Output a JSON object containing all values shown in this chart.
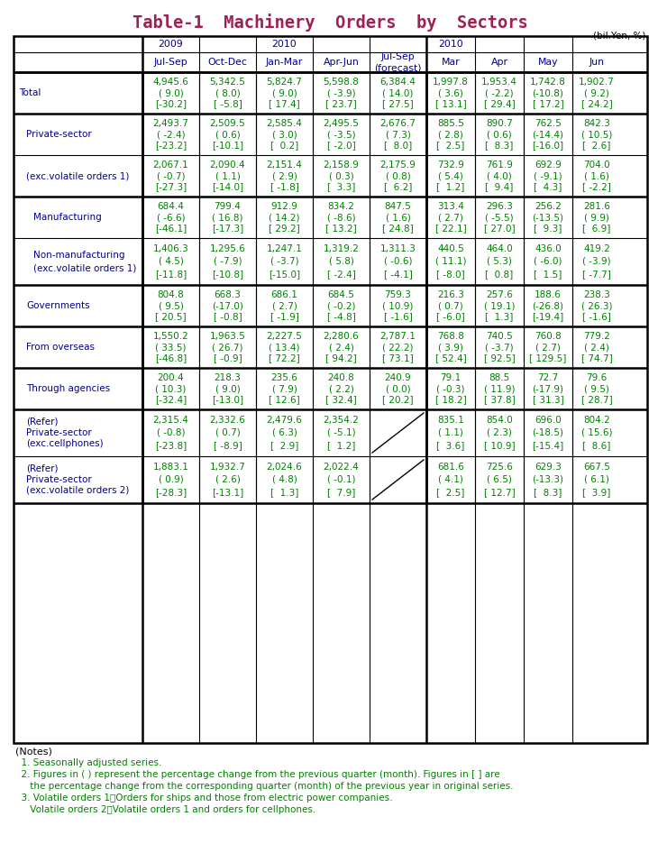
{
  "title": "Table-1  Machinery  Orders  by  Sectors",
  "title_color": "#9B2257",
  "unit_label": "(bil.Yen, %)",
  "col_header_color": "#00008B",
  "data_color": "#008000",
  "label_color": "#00008B",
  "rows": [
    {
      "label": [
        "Total"
      ],
      "indent": 0,
      "values": [
        [
          "4,945.6",
          "( 9.0)",
          "[-30.2]"
        ],
        [
          "5,342.5",
          "( 8.0)",
          "[ -5.8]"
        ],
        [
          "5,824.7",
          "( 9.0)",
          "[ 17.4]"
        ],
        [
          "5,598.8",
          "( -3.9)",
          "[ 23.7]"
        ],
        [
          "6,384.4",
          "( 14.0)",
          "[ 27.5]"
        ],
        [
          "1,997.8",
          "( 3.6)",
          "[ 13.1]"
        ],
        [
          "1,953.4",
          "( -2.2)",
          "[ 29.4]"
        ],
        [
          "1,742.8",
          "(-10.8)",
          "[ 17.2]"
        ],
        [
          "1,902.7",
          "( 9.2)",
          "[ 24.2]"
        ]
      ],
      "thick_top": true,
      "n_label_lines": 1
    },
    {
      "label": [
        "Private-sector"
      ],
      "indent": 1,
      "values": [
        [
          "2,493.7",
          "( -2.4)",
          "[-23.2]"
        ],
        [
          "2,509.5",
          "( 0.6)",
          "[-10.1]"
        ],
        [
          "2,585.4",
          "( 3.0)",
          "[  0.2]"
        ],
        [
          "2,495.5",
          "( -3.5)",
          "[ -2.0]"
        ],
        [
          "2,676.7",
          "( 7.3)",
          "[  8.0]"
        ],
        [
          "885.5",
          "( 2.8)",
          "[  2.5]"
        ],
        [
          "890.7",
          "( 0.6)",
          "[  8.3]"
        ],
        [
          "762.5",
          "(-14.4)",
          "[-16.0]"
        ],
        [
          "842.3",
          "( 10.5)",
          "[  2.6]"
        ]
      ],
      "thick_top": true,
      "n_label_lines": 1
    },
    {
      "label": [
        "(exc.volatile orders 1)"
      ],
      "indent": 1,
      "values": [
        [
          "2,067.1",
          "( -0.7)",
          "[-27.3]"
        ],
        [
          "2,090.4",
          "( 1.1)",
          "[-14.0]"
        ],
        [
          "2,151.4",
          "( 2.9)",
          "[ -1.8]"
        ],
        [
          "2,158.9",
          "( 0.3)",
          "[  3.3]"
        ],
        [
          "2,175.9",
          "( 0.8)",
          "[  6.2]"
        ],
        [
          "732.9",
          "( 5.4)",
          "[  1.2]"
        ],
        [
          "761.9",
          "( 4.0)",
          "[  9.4]"
        ],
        [
          "692.9",
          "( -9.1)",
          "[  4.3]"
        ],
        [
          "704.0",
          "( 1.6)",
          "[ -2.2]"
        ]
      ],
      "thick_top": false,
      "n_label_lines": 1
    },
    {
      "label": [
        "Manufacturing"
      ],
      "indent": 2,
      "values": [
        [
          "684.4",
          "( -6.6)",
          "[-46.1]"
        ],
        [
          "799.4",
          "( 16.8)",
          "[-17.3]"
        ],
        [
          "912.9",
          "( 14.2)",
          "[ 29.2]"
        ],
        [
          "834.2",
          "( -8.6)",
          "[ 13.2]"
        ],
        [
          "847.5",
          "( 1.6)",
          "[ 24.8]"
        ],
        [
          "313.4",
          "( 2.7)",
          "[ 22.1]"
        ],
        [
          "296.3",
          "( -5.5)",
          "[ 27.0]"
        ],
        [
          "256.2",
          "(-13.5)",
          "[  9.3]"
        ],
        [
          "281.6",
          "( 9.9)",
          "[  6.9]"
        ]
      ],
      "thick_top": true,
      "n_label_lines": 1
    },
    {
      "label": [
        "Non-manufacturing",
        "(exc.volatile orders 1)"
      ],
      "indent": 2,
      "values": [
        [
          "1,406.3",
          "( 4.5)",
          "[-11.8]"
        ],
        [
          "1,295.6",
          "( -7.9)",
          "[-10.8]"
        ],
        [
          "1,247.1",
          "( -3.7)",
          "[-15.0]"
        ],
        [
          "1,319.2",
          "( 5.8)",
          "[ -2.4]"
        ],
        [
          "1,311.3",
          "( -0.6)",
          "[ -4.1]"
        ],
        [
          "440.5",
          "( 11.1)",
          "[ -8.0]"
        ],
        [
          "464.0",
          "( 5.3)",
          "[  0.8]"
        ],
        [
          "436.0",
          "( -6.0)",
          "[  1.5]"
        ],
        [
          "419.2",
          "( -3.9)",
          "[ -7.7]"
        ]
      ],
      "thick_top": false,
      "n_label_lines": 2
    },
    {
      "label": [
        "Governments"
      ],
      "indent": 1,
      "values": [
        [
          "804.8",
          "( 9.5)",
          "[ 20.5]"
        ],
        [
          "668.3",
          "(-17.0)",
          "[ -0.8]"
        ],
        [
          "686.1",
          "( 2.7)",
          "[ -1.9]"
        ],
        [
          "684.5",
          "( -0.2)",
          "[ -4.8]"
        ],
        [
          "759.3",
          "( 10.9)",
          "[ -1.6]"
        ],
        [
          "216.3",
          "( 0.7)",
          "[ -6.0]"
        ],
        [
          "257.6",
          "( 19.1)",
          "[  1.3]"
        ],
        [
          "188.6",
          "(-26.8)",
          "[-19.4]"
        ],
        [
          "238.3",
          "( 26.3)",
          "[ -1.6]"
        ]
      ],
      "thick_top": true,
      "n_label_lines": 1
    },
    {
      "label": [
        "From overseas"
      ],
      "indent": 1,
      "values": [
        [
          "1,550.2",
          "( 33.5)",
          "[-46.8]"
        ],
        [
          "1,963.5",
          "( 26.7)",
          "[ -0.9]"
        ],
        [
          "2,227.5",
          "( 13.4)",
          "[ 72.2]"
        ],
        [
          "2,280.6",
          "( 2.4)",
          "[ 94.2]"
        ],
        [
          "2,787.1",
          "( 22.2)",
          "[ 73.1]"
        ],
        [
          "768.8",
          "( 3.9)",
          "[ 52.4]"
        ],
        [
          "740.5",
          "( -3.7)",
          "[ 92.5]"
        ],
        [
          "760.8",
          "( 2.7)",
          "[ 129.5]"
        ],
        [
          "779.2",
          "( 2.4)",
          "[ 74.7]"
        ]
      ],
      "thick_top": true,
      "n_label_lines": 1
    },
    {
      "label": [
        "Through agencies"
      ],
      "indent": 1,
      "values": [
        [
          "200.4",
          "( 10.3)",
          "[-32.4]"
        ],
        [
          "218.3",
          "( 9.0)",
          "[-13.0]"
        ],
        [
          "235.6",
          "( 7.9)",
          "[ 12.6]"
        ],
        [
          "240.8",
          "( 2.2)",
          "[ 32.4]"
        ],
        [
          "240.9",
          "( 0.0)",
          "[ 20.2]"
        ],
        [
          "79.1",
          "( -0.3)",
          "[ 18.2]"
        ],
        [
          "88.5",
          "( 11.9)",
          "[ 37.8]"
        ],
        [
          "72.7",
          "(-17.9)",
          "[ 31.3]"
        ],
        [
          "79.6",
          "( 9.5)",
          "[ 28.7]"
        ]
      ],
      "thick_top": true,
      "n_label_lines": 1
    },
    {
      "label": [
        "(Refer)",
        "Private-sector",
        "(exc.cellphones)"
      ],
      "indent": 1,
      "values": [
        [
          "2,315.4",
          "( -0.8)",
          "[-23.8]"
        ],
        [
          "2,332.6",
          "( 0.7)",
          "[ -8.9]"
        ],
        [
          "2,479.6",
          "( 6.3)",
          "[  2.9]"
        ],
        [
          "2,354.2",
          "( -5.1)",
          "[  1.2]"
        ],
        [
          "",
          "",
          ""
        ],
        [
          "835.1",
          "( 1.1)",
          "[  3.6]"
        ],
        [
          "854.0",
          "( 2.3)",
          "[ 10.9]"
        ],
        [
          "696.0",
          "(-18.5)",
          "[-15.4]"
        ],
        [
          "804.2",
          "( 15.6)",
          "[  8.6]"
        ]
      ],
      "thick_top": true,
      "n_label_lines": 3,
      "diagonal_in_col5": true
    },
    {
      "label": [
        "(Refer)",
        "Private-sector",
        "(exc.volatile orders 2)"
      ],
      "indent": 1,
      "values": [
        [
          "1,883.1",
          "( 0.9)",
          "[-28.3]"
        ],
        [
          "1,932.7",
          "( 2.6)",
          "[-13.1]"
        ],
        [
          "2,024.6",
          "( 4.8)",
          "[  1.3]"
        ],
        [
          "2,022.4",
          "( -0.1)",
          "[  7.9]"
        ],
        [
          "",
          "",
          ""
        ],
        [
          "681.6",
          "( 4.1)",
          "[  2.5]"
        ],
        [
          "725.6",
          "( 6.5)",
          "[ 12.7]"
        ],
        [
          "629.3",
          "(-13.3)",
          "[  8.3]"
        ],
        [
          "667.5",
          "( 6.1)",
          "[  3.9]"
        ]
      ],
      "thick_top": false,
      "n_label_lines": 3,
      "diagonal_in_col5": true
    }
  ],
  "notes": [
    "(Notes)",
    "  1. Seasonally adjusted series.",
    "  2. Figures in ( ) represent the percentage change from the previous quarter (month). Figures in [ ] are",
    "     the percentage change from the corresponding quarter (month) of the previous year in original series.",
    "  3. Volatile orders 1：Orders for ships and those from electric power companies.",
    "     Volatile orders 2：Volatile orders 1 and orders for cellphones."
  ]
}
